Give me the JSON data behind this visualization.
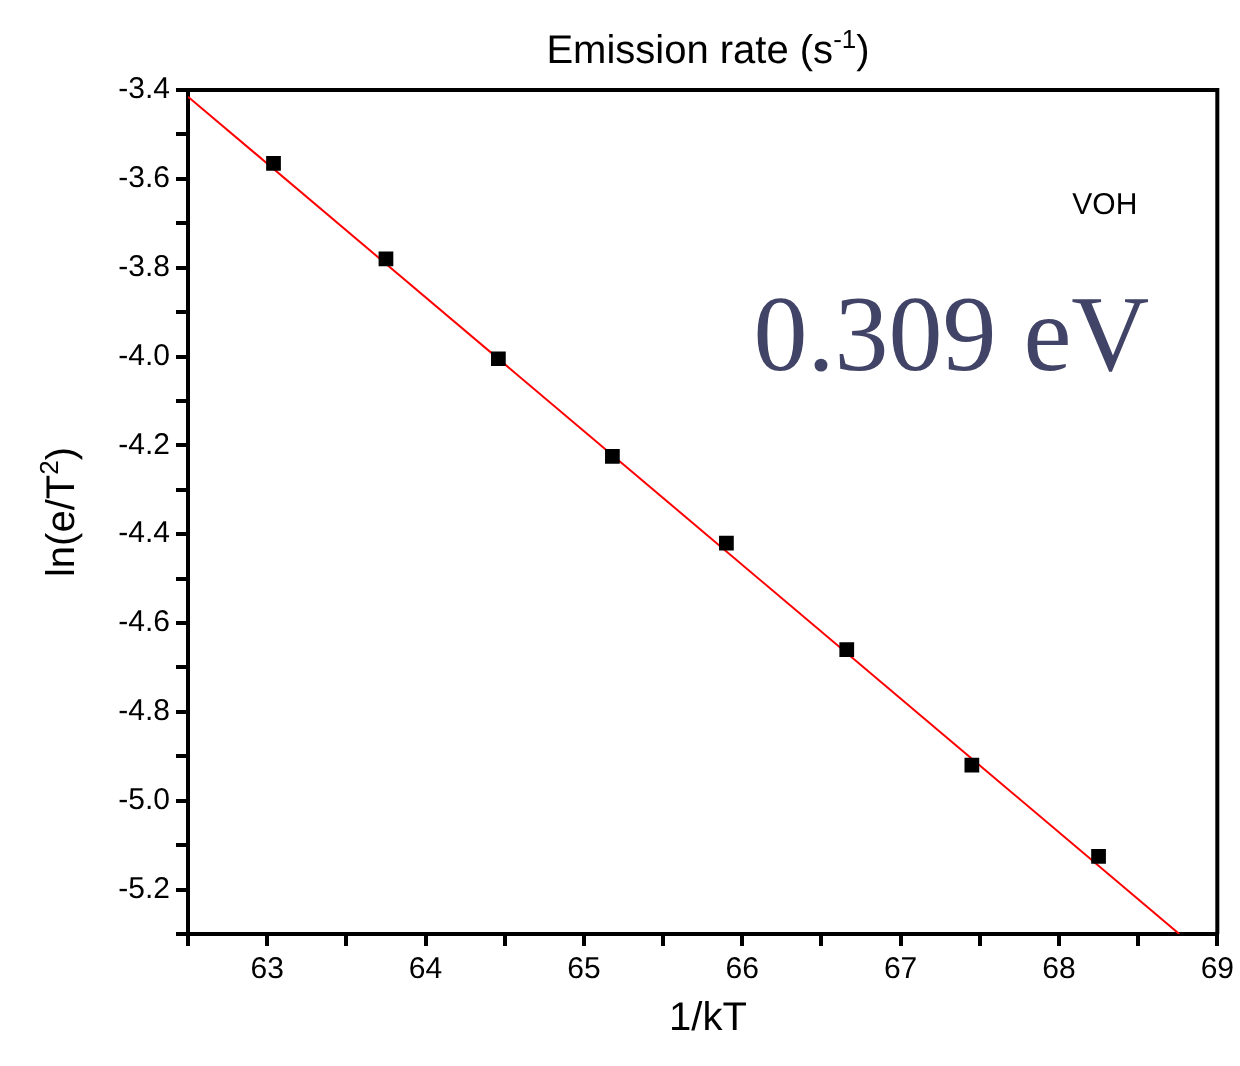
{
  "chart_data": {
    "type": "scatter",
    "title": "Emission rate (s$^{-1}$)",
    "xlabel": "1/kT",
    "ylabel": "ln(e/T$^{2}$)",
    "annotations": [
      "VOH",
      "0.309 eV"
    ],
    "xlim": [
      62.5,
      69
    ],
    "xticks": [
      {
        "value": 62.5,
        "label": null
      },
      63,
      {
        "value": 63.5,
        "label": null
      },
      64,
      {
        "value": 64.5,
        "label": null
      },
      65,
      {
        "value": 65.5,
        "label": null
      },
      66,
      {
        "value": 66.5,
        "label": null
      },
      67,
      {
        "value": 67.5,
        "label": null
      },
      68,
      {
        "value": 68.5,
        "label": null
      },
      69
    ],
    "ylim": [
      -5.3,
      -3.4
    ],
    "yticks": [
      {
        "value": -5.3,
        "label": null
      },
      -5.2,
      {
        "value": -5.1,
        "label": null
      },
      "-5.0",
      {
        "value": -4.9,
        "label": null
      },
      -4.8,
      {
        "value": -4.7,
        "label": null
      },
      -4.6,
      {
        "value": -4.5,
        "label": null
      },
      -4.4,
      {
        "value": -4.3,
        "label": null
      },
      -4.2,
      {
        "value": -4.1,
        "label": null
      },
      {
        "value": -4.0,
        "label": "-4.0"
      },
      {
        "value": -3.9,
        "label": null
      },
      -3.8,
      {
        "value": -3.7,
        "label": null
      },
      -3.6,
      {
        "value": -3.5,
        "label": null
      },
      -3.4
    ],
    "grid": false,
    "legend": false,
    "marker": "square",
    "series": [
      {
        "color": "#000000",
        "x": [
          63.04,
          63.75,
          64.46,
          65.18,
          65.9,
          66.66,
          67.45,
          68.25
        ],
        "values": [
          -3.565,
          -3.78,
          -4.005,
          -4.225,
          -4.42,
          -4.66,
          -4.92,
          -5.125
        ]
      },
      {
        "type": "line",
        "color": "#ff0000",
        "x": [
          62.5,
          68.76
        ],
        "values": [
          -3.415,
          -5.3
        ],
        "marker": "none"
      }
    ]
  }
}
